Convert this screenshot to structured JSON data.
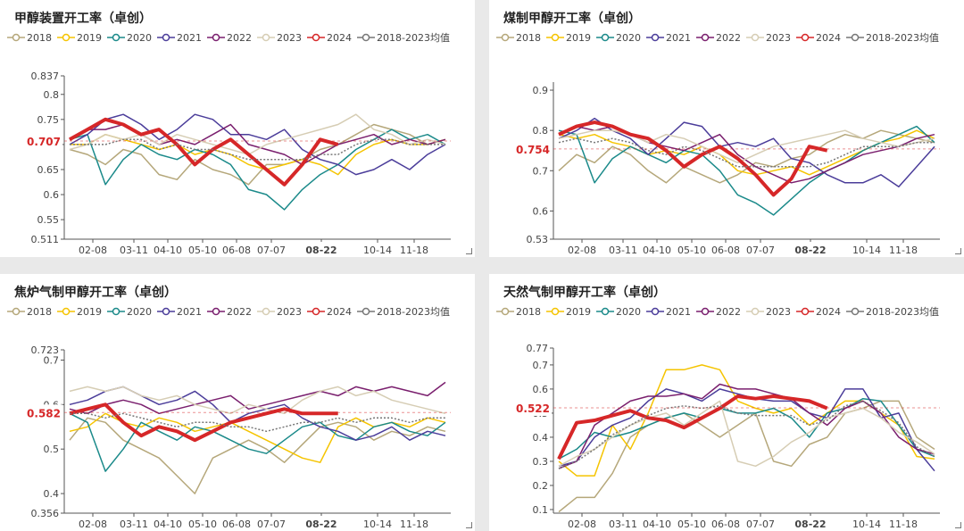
{
  "legend_years": [
    "2018",
    "2019",
    "2020",
    "2021",
    "2022",
    "2023",
    "2024",
    "2018-2023均值"
  ],
  "colors": {
    "2018": "#b5a77a",
    "2019": "#f5c400",
    "2020": "#1b8a8a",
    "2021": "#4b3d9a",
    "2022": "#7a1f6e",
    "2023": "#d6cdb4",
    "2024": "#d62728",
    "avg": "#777777"
  },
  "x_ticks": [
    "02-08",
    "03-11",
    "04-10",
    "05-10",
    "06-08",
    "07-07",
    "08-22",
    "10-14",
    "11-18"
  ],
  "highlight_x_tick": "08-22",
  "chart_data": [
    {
      "type": "line",
      "title": "甲醇装置开工率（卓创）",
      "ylim": [
        0.511,
        0.837
      ],
      "y_ticks": [
        "0.511",
        "0.55",
        "0.6",
        "0.65",
        "0.7",
        "0.75",
        "0.8",
        "0.837"
      ],
      "current_value_label": "0.707",
      "current_value": 0.707,
      "series": [
        {
          "name": "2018",
          "values": [
            0.69,
            0.68,
            0.66,
            0.69,
            0.68,
            0.64,
            0.63,
            0.67,
            0.65,
            0.64,
            0.62,
            0.66,
            0.66,
            0.67,
            0.69,
            0.7,
            0.72,
            0.74,
            0.73,
            0.72,
            0.7,
            0.71
          ]
        },
        {
          "name": "2019",
          "values": [
            0.7,
            0.7,
            0.72,
            0.71,
            0.7,
            0.69,
            0.7,
            0.68,
            0.69,
            0.68,
            0.66,
            0.65,
            0.66,
            0.67,
            0.66,
            0.64,
            0.68,
            0.7,
            0.71,
            0.7,
            0.7,
            0.71
          ]
        },
        {
          "name": "2020",
          "values": [
            0.71,
            0.72,
            0.62,
            0.67,
            0.7,
            0.68,
            0.67,
            0.69,
            0.68,
            0.66,
            0.61,
            0.6,
            0.57,
            0.61,
            0.64,
            0.66,
            0.69,
            0.71,
            0.73,
            0.71,
            0.72,
            0.7
          ]
        },
        {
          "name": "2021",
          "values": [
            0.7,
            0.72,
            0.75,
            0.76,
            0.74,
            0.71,
            0.73,
            0.76,
            0.75,
            0.72,
            0.72,
            0.71,
            0.73,
            0.69,
            0.67,
            0.66,
            0.64,
            0.65,
            0.67,
            0.65,
            0.68,
            0.7
          ]
        },
        {
          "name": "2022",
          "values": [
            0.71,
            0.73,
            0.73,
            0.74,
            0.72,
            0.7,
            0.71,
            0.7,
            0.72,
            0.74,
            0.7,
            0.69,
            0.68,
            0.66,
            0.68,
            0.7,
            0.71,
            0.72,
            0.7,
            0.71,
            0.7,
            0.71
          ]
        },
        {
          "name": "2023",
          "values": [
            0.69,
            0.7,
            0.72,
            0.71,
            0.72,
            0.7,
            0.72,
            0.71,
            0.7,
            0.69,
            0.68,
            0.7,
            0.71,
            0.72,
            0.73,
            0.74,
            0.76,
            0.73,
            0.72,
            0.7,
            0.71,
            0.7
          ]
        },
        {
          "name": "2024",
          "values": [
            0.71,
            0.73,
            0.75,
            0.74,
            0.72,
            0.73,
            0.7,
            0.66,
            0.69,
            0.71,
            0.68,
            0.65,
            0.62,
            0.66,
            0.71,
            0.7
          ]
        },
        {
          "name": "2018-2023均值",
          "values": [
            0.7,
            0.7,
            0.7,
            0.71,
            0.71,
            0.69,
            0.7,
            0.69,
            0.69,
            0.68,
            0.67,
            0.67,
            0.67,
            0.67,
            0.68,
            0.68,
            0.7,
            0.71,
            0.71,
            0.7,
            0.7,
            0.7
          ]
        }
      ]
    },
    {
      "type": "line",
      "title": "煤制甲醇开工率（卓创）",
      "ylim": [
        0.53,
        0.92
      ],
      "y_ticks": [
        "0.53",
        "0.6",
        "0.7",
        "0.8",
        "0.9"
      ],
      "current_value_label": "0.754",
      "current_value": 0.754,
      "series": [
        {
          "name": "2018",
          "values": [
            0.7,
            0.74,
            0.72,
            0.76,
            0.74,
            0.7,
            0.67,
            0.71,
            0.69,
            0.67,
            0.69,
            0.72,
            0.71,
            0.73,
            0.74,
            0.77,
            0.79,
            0.78,
            0.8,
            0.79,
            0.78,
            0.77
          ]
        },
        {
          "name": "2019",
          "values": [
            0.79,
            0.78,
            0.79,
            0.77,
            0.76,
            0.74,
            0.75,
            0.74,
            0.76,
            0.74,
            0.7,
            0.69,
            0.7,
            0.71,
            0.69,
            0.71,
            0.73,
            0.75,
            0.77,
            0.78,
            0.8,
            0.78
          ]
        },
        {
          "name": "2020",
          "values": [
            0.8,
            0.79,
            0.67,
            0.73,
            0.76,
            0.74,
            0.72,
            0.75,
            0.74,
            0.7,
            0.64,
            0.62,
            0.59,
            0.63,
            0.67,
            0.7,
            0.72,
            0.75,
            0.77,
            0.79,
            0.81,
            0.77
          ]
        },
        {
          "name": "2021",
          "values": [
            0.78,
            0.8,
            0.83,
            0.8,
            0.78,
            0.74,
            0.78,
            0.82,
            0.81,
            0.76,
            0.77,
            0.76,
            0.78,
            0.73,
            0.72,
            0.69,
            0.67,
            0.67,
            0.69,
            0.66,
            0.71,
            0.76
          ]
        },
        {
          "name": "2022",
          "values": [
            0.79,
            0.81,
            0.8,
            0.81,
            0.79,
            0.77,
            0.76,
            0.75,
            0.77,
            0.79,
            0.74,
            0.71,
            0.69,
            0.67,
            0.68,
            0.7,
            0.72,
            0.74,
            0.75,
            0.76,
            0.78,
            0.79
          ]
        },
        {
          "name": "2023",
          "values": [
            0.78,
            0.79,
            0.8,
            0.8,
            0.79,
            0.77,
            0.79,
            0.78,
            0.76,
            0.74,
            0.72,
            0.74,
            0.76,
            0.77,
            0.78,
            0.79,
            0.8,
            0.78,
            0.77,
            0.76,
            0.77,
            0.78
          ]
        },
        {
          "name": "2024",
          "values": [
            0.79,
            0.81,
            0.82,
            0.81,
            0.79,
            0.78,
            0.75,
            0.71,
            0.74,
            0.76,
            0.73,
            0.69,
            0.64,
            0.68,
            0.76,
            0.75
          ]
        },
        {
          "name": "2018-2023均值",
          "values": [
            0.77,
            0.78,
            0.77,
            0.78,
            0.77,
            0.75,
            0.74,
            0.76,
            0.75,
            0.73,
            0.71,
            0.71,
            0.71,
            0.71,
            0.71,
            0.72,
            0.74,
            0.76,
            0.76,
            0.76,
            0.77,
            0.77
          ]
        }
      ]
    },
    {
      "type": "line",
      "title": "焦炉气制甲醇开工率（卓创）",
      "ylim": [
        0.356,
        0.723
      ],
      "y_ticks": [
        "0.356",
        "0.4",
        "0.5",
        "0.6",
        "0.7",
        "0.723"
      ],
      "current_value_label": "0.582",
      "current_value": 0.582,
      "series": [
        {
          "name": "2018",
          "values": [
            0.52,
            0.57,
            0.56,
            0.52,
            0.5,
            0.48,
            0.44,
            0.4,
            0.48,
            0.5,
            0.52,
            0.5,
            0.47,
            0.51,
            0.55,
            0.56,
            0.55,
            0.52,
            0.54,
            0.53,
            0.55,
            0.54
          ]
        },
        {
          "name": "2019",
          "values": [
            0.54,
            0.55,
            0.58,
            0.56,
            0.55,
            0.57,
            0.56,
            0.54,
            0.55,
            0.56,
            0.54,
            0.52,
            0.5,
            0.48,
            0.47,
            0.55,
            0.57,
            0.55,
            0.56,
            0.55,
            0.57,
            0.56
          ]
        },
        {
          "name": "2020",
          "values": [
            0.58,
            0.56,
            0.45,
            0.5,
            0.56,
            0.54,
            0.52,
            0.55,
            0.54,
            0.52,
            0.5,
            0.49,
            0.52,
            0.55,
            0.56,
            0.53,
            0.52,
            0.55,
            0.56,
            0.54,
            0.53,
            0.56
          ]
        },
        {
          "name": "2021",
          "values": [
            0.6,
            0.61,
            0.63,
            0.64,
            0.62,
            0.6,
            0.61,
            0.63,
            0.6,
            0.56,
            0.58,
            0.59,
            0.6,
            0.57,
            0.55,
            0.54,
            0.52,
            0.53,
            0.55,
            0.52,
            0.54,
            0.53
          ]
        },
        {
          "name": "2022",
          "values": [
            0.59,
            0.58,
            0.6,
            0.61,
            0.6,
            0.58,
            0.59,
            0.6,
            0.61,
            0.62,
            0.59,
            0.6,
            0.61,
            0.62,
            0.63,
            0.62,
            0.64,
            0.63,
            0.64,
            0.63,
            0.62,
            0.65
          ]
        },
        {
          "name": "2023",
          "values": [
            0.63,
            0.64,
            0.63,
            0.64,
            0.62,
            0.61,
            0.62,
            0.6,
            0.59,
            0.58,
            0.6,
            0.59,
            0.58,
            0.61,
            0.63,
            0.64,
            0.62,
            0.63,
            0.61,
            0.6,
            0.59,
            0.58
          ]
        },
        {
          "name": "2024",
          "values": [
            0.58,
            0.59,
            0.6,
            0.56,
            0.53,
            0.55,
            0.54,
            0.52,
            0.54,
            0.56,
            0.57,
            0.58,
            0.59,
            0.58,
            0.58,
            0.58
          ]
        },
        {
          "name": "2018-2023均值",
          "values": [
            0.58,
            0.58,
            0.57,
            0.58,
            0.57,
            0.56,
            0.55,
            0.56,
            0.56,
            0.55,
            0.55,
            0.54,
            0.55,
            0.56,
            0.56,
            0.57,
            0.56,
            0.57,
            0.57,
            0.56,
            0.57,
            0.57
          ]
        }
      ]
    },
    {
      "type": "line",
      "title": "天然气制甲醇开工率（卓创）",
      "ylim": [
        0.085,
        0.77
      ],
      "y_ticks": [
        "0.1",
        "0.2",
        "0.3",
        "0.4",
        "0.5",
        "0.6",
        "0.7",
        "0.77"
      ],
      "current_value_label": "0.522",
      "current_value": 0.522,
      "series": [
        {
          "name": "2018",
          "values": [
            0.09,
            0.15,
            0.15,
            0.25,
            0.4,
            0.45,
            0.48,
            0.5,
            0.45,
            0.4,
            0.45,
            0.5,
            0.3,
            0.28,
            0.37,
            0.4,
            0.5,
            0.52,
            0.55,
            0.55,
            0.4,
            0.35
          ]
        },
        {
          "name": "2019",
          "values": [
            0.3,
            0.24,
            0.24,
            0.45,
            0.35,
            0.5,
            0.68,
            0.68,
            0.7,
            0.68,
            0.55,
            0.52,
            0.5,
            0.52,
            0.45,
            0.5,
            0.55,
            0.55,
            0.5,
            0.45,
            0.32,
            0.31
          ]
        },
        {
          "name": "2020",
          "values": [
            0.31,
            0.35,
            0.42,
            0.4,
            0.42,
            0.45,
            0.48,
            0.5,
            0.48,
            0.52,
            0.5,
            0.5,
            0.52,
            0.48,
            0.4,
            0.5,
            0.52,
            0.56,
            0.55,
            0.45,
            0.35,
            0.32
          ]
        },
        {
          "name": "2021",
          "values": [
            0.28,
            0.3,
            0.4,
            0.45,
            0.48,
            0.55,
            0.6,
            0.58,
            0.55,
            0.6,
            0.58,
            0.56,
            0.55,
            0.55,
            0.5,
            0.48,
            0.6,
            0.6,
            0.48,
            0.5,
            0.35,
            0.26
          ]
        },
        {
          "name": "2022",
          "values": [
            0.27,
            0.3,
            0.45,
            0.5,
            0.55,
            0.57,
            0.57,
            0.58,
            0.56,
            0.62,
            0.6,
            0.6,
            0.58,
            0.56,
            0.5,
            0.45,
            0.52,
            0.55,
            0.5,
            0.4,
            0.35,
            0.33
          ]
        },
        {
          "name": "2023",
          "values": [
            0.28,
            0.32,
            0.35,
            0.4,
            0.45,
            0.48,
            0.5,
            0.45,
            0.5,
            0.55,
            0.3,
            0.28,
            0.32,
            0.38,
            0.42,
            0.48,
            0.5,
            0.52,
            0.48,
            0.42,
            0.38,
            0.33
          ]
        },
        {
          "name": "2024",
          "values": [
            0.31,
            0.46,
            0.47,
            0.49,
            0.51,
            0.48,
            0.47,
            0.44,
            0.48,
            0.52,
            0.57,
            0.56,
            0.57,
            0.56,
            0.55,
            0.52
          ]
        },
        {
          "name": "2018-2023均值",
          "values": [
            0.27,
            0.3,
            0.35,
            0.41,
            0.45,
            0.49,
            0.52,
            0.53,
            0.52,
            0.53,
            0.5,
            0.49,
            0.49,
            0.49,
            0.45,
            0.47,
            0.53,
            0.55,
            0.51,
            0.46,
            0.36,
            0.32
          ]
        }
      ]
    }
  ]
}
